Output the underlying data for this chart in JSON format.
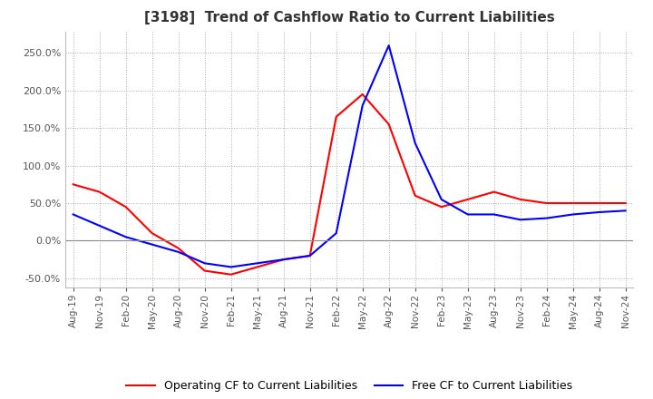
{
  "title": "[3198]  Trend of Cashflow Ratio to Current Liabilities",
  "x_labels": [
    "Aug-19",
    "Nov-19",
    "Feb-20",
    "May-20",
    "Aug-20",
    "Nov-20",
    "Feb-21",
    "May-21",
    "Aug-21",
    "Nov-21",
    "Feb-22",
    "May-22",
    "Aug-22",
    "Nov-22",
    "Feb-23",
    "May-23",
    "Aug-23",
    "Nov-23",
    "Feb-24",
    "May-24",
    "Aug-24",
    "Nov-24"
  ],
  "operating_cf": [
    75.0,
    65.0,
    45.0,
    10.0,
    -10.0,
    -40.0,
    -45.0,
    -35.0,
    -25.0,
    -20.0,
    165.0,
    195.0,
    155.0,
    60.0,
    45.0,
    55.0,
    65.0,
    55.0,
    50.0,
    50.0,
    50.0,
    50.0
  ],
  "free_cf": [
    35.0,
    20.0,
    5.0,
    -5.0,
    -15.0,
    -30.0,
    -35.0,
    -30.0,
    -25.0,
    -20.0,
    10.0,
    180.0,
    260.0,
    130.0,
    55.0,
    35.0,
    35.0,
    28.0,
    30.0,
    35.0,
    38.0,
    40.0
  ],
  "ylim": [
    -62.0,
    278.0
  ],
  "yticks": [
    -50.0,
    0.0,
    50.0,
    100.0,
    150.0,
    200.0,
    250.0
  ],
  "operating_color": "#FF0000",
  "free_color": "#0000FF",
  "background_color": "#FFFFFF",
  "grid_color": "#AAAAAA",
  "title_fontsize": 11,
  "legend_labels": [
    "Operating CF to Current Liabilities",
    "Free CF to Current Liabilities"
  ]
}
